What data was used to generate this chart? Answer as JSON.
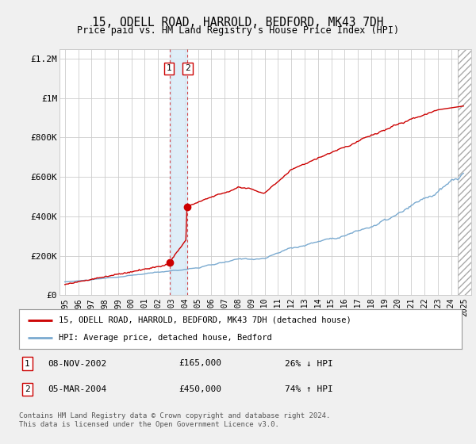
{
  "title": "15, ODELL ROAD, HARROLD, BEDFORD, MK43 7DH",
  "subtitle": "Price paid vs. HM Land Registry's House Price Index (HPI)",
  "legend_line1": "15, ODELL ROAD, HARROLD, BEDFORD, MK43 7DH (detached house)",
  "legend_line2": "HPI: Average price, detached house, Bedford",
  "table_rows": [
    {
      "num": "1",
      "date": "08-NOV-2002",
      "price": "£165,000",
      "pct": "26% ↓ HPI"
    },
    {
      "num": "2",
      "date": "05-MAR-2004",
      "price": "£450,000",
      "pct": "74% ↑ HPI"
    }
  ],
  "footnote1": "Contains HM Land Registry data © Crown copyright and database right 2024.",
  "footnote2": "This data is licensed under the Open Government Licence v3.0.",
  "sale1_x": 2002.85,
  "sale1_y": 165000,
  "sale2_x": 2004.17,
  "sale2_y": 450000,
  "vline1_x": 2002.85,
  "vline2_x": 2004.17,
  "shade_x1": 2002.85,
  "shade_x2": 2004.17,
  "hatch_x1": 2024.5,
  "hatch_x2": 2025.5,
  "ylim": [
    0,
    1250000
  ],
  "xlim_left": 1994.6,
  "xlim_right": 2025.5,
  "red_color": "#cc0000",
  "blue_color": "#7aaad0",
  "shade_color": "#d8eaf7",
  "bg_color": "#f0f0f0",
  "plot_bg": "#ffffff",
  "grid_color": "#cccccc"
}
